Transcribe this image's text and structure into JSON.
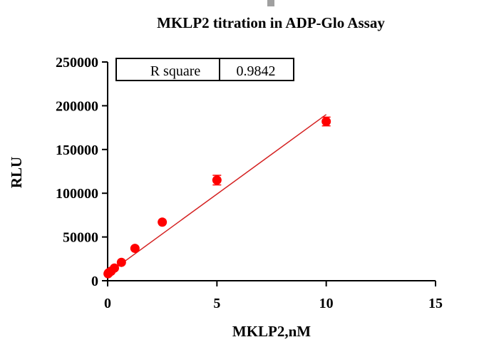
{
  "chart_data": {
    "type": "scatter",
    "title": "MKLP2 titration in   ADP-Glo Assay",
    "xlabel": "MKLP2,nM",
    "ylabel": "RLU",
    "xlim": [
      0,
      15
    ],
    "ylim": [
      0,
      250000
    ],
    "x_ticks": [
      "0",
      "5",
      "10",
      "15"
    ],
    "y_ticks": [
      "0",
      "50000",
      "100000",
      "150000",
      "200000",
      "250000"
    ],
    "grid": false,
    "point_color": "#ff0000",
    "line_color": "#d42020",
    "fit_line": {
      "x": [
        0,
        10
      ],
      "y": [
        8000,
        190000
      ]
    },
    "points": [
      {
        "x": 0.02,
        "y": 8000,
        "err": 1000
      },
      {
        "x": 0.04,
        "y": 9000,
        "err": 1000
      },
      {
        "x": 0.08,
        "y": 9500,
        "err": 1000
      },
      {
        "x": 0.16,
        "y": 11000,
        "err": 1000
      },
      {
        "x": 0.31,
        "y": 14500,
        "err": 1500
      },
      {
        "x": 0.63,
        "y": 21000,
        "err": 1500
      },
      {
        "x": 1.25,
        "y": 37000,
        "err": 2000
      },
      {
        "x": 2.5,
        "y": 67000,
        "err": 2500
      },
      {
        "x": 5,
        "y": 115000,
        "err": 5500
      },
      {
        "x": 10,
        "y": 182000,
        "err": 5000
      }
    ],
    "stats_box": {
      "label": "R square",
      "value": "0.9842"
    }
  }
}
